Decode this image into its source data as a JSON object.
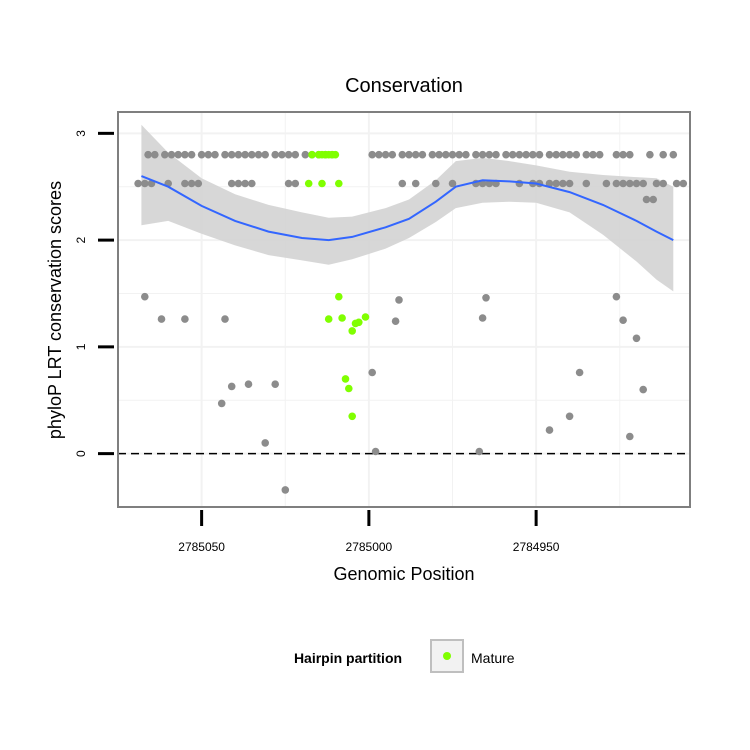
{
  "chart_data": {
    "type": "scatter",
    "title": "Conservation",
    "xlabel": "Genomic Position",
    "ylabel": "phyloP LRT conservation scores",
    "xlim": [
      2785075,
      2784904
    ],
    "x_reversed": true,
    "ylim": [
      -0.5,
      3.2
    ],
    "xticks": [
      2785050,
      2785000,
      2784950
    ],
    "yticks": [
      0,
      1,
      2,
      3
    ],
    "grid": true,
    "reference_line": {
      "y": 0,
      "style": "dashed",
      "color": "#000000"
    },
    "legend": {
      "title": "Hairpin partition",
      "position": "bottom",
      "entries": [
        {
          "label": "Mature",
          "color": "#80ff00"
        }
      ]
    },
    "colors": {
      "other": "#8c8c8c",
      "mature": "#80ff00",
      "smooth_line": "#3366ff",
      "ribbon": "#d3d3d3",
      "panel_border": "#7f7f7f",
      "grid": "#f2f2f2"
    },
    "series": [
      {
        "group": "other",
        "points": [
          [
            2785066,
            2.8
          ],
          [
            2785064,
            2.8
          ],
          [
            2785061,
            2.8
          ],
          [
            2785059,
            2.8
          ],
          [
            2785057,
            2.8
          ],
          [
            2785055,
            2.8
          ],
          [
            2785053,
            2.8
          ],
          [
            2785050,
            2.8
          ],
          [
            2785048,
            2.8
          ],
          [
            2785046,
            2.8
          ],
          [
            2785043,
            2.8
          ],
          [
            2785041,
            2.8
          ],
          [
            2785039,
            2.8
          ],
          [
            2785037,
            2.8
          ],
          [
            2785035,
            2.8
          ],
          [
            2785033,
            2.8
          ],
          [
            2785031,
            2.8
          ],
          [
            2785028,
            2.8
          ],
          [
            2785026,
            2.8
          ],
          [
            2785024,
            2.8
          ],
          [
            2785022,
            2.8
          ],
          [
            2785019,
            2.8
          ],
          [
            2785017,
            2.8
          ],
          [
            2785015,
            2.8
          ],
          [
            2785013,
            2.8
          ],
          [
            2785011,
            2.8
          ],
          [
            2784999,
            2.8
          ],
          [
            2784997,
            2.8
          ],
          [
            2784995,
            2.8
          ],
          [
            2784993,
            2.8
          ],
          [
            2784990,
            2.8
          ],
          [
            2784988,
            2.8
          ],
          [
            2784986,
            2.8
          ],
          [
            2784984,
            2.8
          ],
          [
            2784981,
            2.8
          ],
          [
            2784979,
            2.8
          ],
          [
            2784977,
            2.8
          ],
          [
            2784975,
            2.8
          ],
          [
            2784973,
            2.8
          ],
          [
            2784971,
            2.8
          ],
          [
            2784968,
            2.8
          ],
          [
            2784966,
            2.8
          ],
          [
            2784964,
            2.8
          ],
          [
            2784962,
            2.8
          ],
          [
            2784959,
            2.8
          ],
          [
            2784957,
            2.8
          ],
          [
            2784955,
            2.8
          ],
          [
            2784953,
            2.8
          ],
          [
            2784951,
            2.8
          ],
          [
            2784949,
            2.8
          ],
          [
            2784946,
            2.8
          ],
          [
            2784944,
            2.8
          ],
          [
            2784942,
            2.8
          ],
          [
            2784940,
            2.8
          ],
          [
            2784938,
            2.8
          ],
          [
            2784935,
            2.8
          ],
          [
            2784933,
            2.8
          ],
          [
            2784931,
            2.8
          ],
          [
            2784926,
            2.8
          ],
          [
            2784924,
            2.8
          ],
          [
            2784922,
            2.8
          ],
          [
            2784916,
            2.8
          ],
          [
            2784912,
            2.8
          ],
          [
            2784909,
            2.8
          ],
          [
            2785069,
            2.53
          ],
          [
            2785067,
            2.53
          ],
          [
            2785065,
            2.53
          ],
          [
            2785060,
            2.53
          ],
          [
            2785055,
            2.53
          ],
          [
            2785053,
            2.53
          ],
          [
            2785051,
            2.53
          ],
          [
            2785041,
            2.53
          ],
          [
            2785039,
            2.53
          ],
          [
            2785037,
            2.53
          ],
          [
            2785035,
            2.53
          ],
          [
            2785024,
            2.53
          ],
          [
            2785022,
            2.53
          ],
          [
            2784990,
            2.53
          ],
          [
            2784986,
            2.53
          ],
          [
            2784980,
            2.53
          ],
          [
            2784975,
            2.53
          ],
          [
            2784968,
            2.53
          ],
          [
            2784966,
            2.53
          ],
          [
            2784964,
            2.53
          ],
          [
            2784962,
            2.53
          ],
          [
            2784955,
            2.53
          ],
          [
            2784951,
            2.53
          ],
          [
            2784949,
            2.53
          ],
          [
            2784946,
            2.53
          ],
          [
            2784944,
            2.53
          ],
          [
            2784942,
            2.53
          ],
          [
            2784940,
            2.53
          ],
          [
            2784935,
            2.53
          ],
          [
            2784929,
            2.53
          ],
          [
            2784926,
            2.53
          ],
          [
            2784924,
            2.53
          ],
          [
            2784922,
            2.53
          ],
          [
            2784920,
            2.53
          ],
          [
            2784918,
            2.53
          ],
          [
            2784914,
            2.53
          ],
          [
            2784912,
            2.53
          ],
          [
            2784908,
            2.53
          ],
          [
            2784906,
            2.53
          ],
          [
            2784917,
            2.38
          ],
          [
            2784915,
            2.38
          ],
          [
            2785067,
            1.47
          ],
          [
            2785062,
            1.26
          ],
          [
            2785055,
            1.26
          ],
          [
            2785043,
            1.26
          ],
          [
            2784991,
            1.44
          ],
          [
            2784992,
            1.24
          ],
          [
            2784965,
            1.46
          ],
          [
            2784966,
            1.27
          ],
          [
            2784926,
            1.47
          ],
          [
            2784924,
            1.25
          ],
          [
            2784920,
            1.08
          ],
          [
            2784999,
            0.76
          ],
          [
            2785036,
            0.65
          ],
          [
            2785028,
            0.65
          ],
          [
            2785041,
            0.63
          ],
          [
            2785044,
            0.47
          ],
          [
            2784937,
            0.76
          ],
          [
            2784918,
            0.6
          ],
          [
            2784940,
            0.35
          ],
          [
            2784946,
            0.22
          ],
          [
            2784922,
            0.16
          ],
          [
            2785031,
            0.1
          ],
          [
            2784998,
            0.02
          ],
          [
            2784967,
            0.02
          ],
          [
            2785025,
            -0.34
          ]
        ]
      },
      {
        "group": "mature",
        "points": [
          [
            2785017,
            2.8
          ],
          [
            2785015,
            2.8
          ],
          [
            2785014,
            2.8
          ],
          [
            2785013,
            2.8
          ],
          [
            2785012,
            2.8
          ],
          [
            2785011,
            2.8
          ],
          [
            2785010,
            2.8
          ],
          [
            2785018,
            2.53
          ],
          [
            2785014,
            2.53
          ],
          [
            2785009,
            2.53
          ],
          [
            2785009,
            1.47
          ],
          [
            2785012,
            1.26
          ],
          [
            2785008,
            1.27
          ],
          [
            2785005,
            1.15
          ],
          [
            2785004,
            1.22
          ],
          [
            2785003,
            1.23
          ],
          [
            2785001,
            1.28
          ],
          [
            2785007,
            0.7
          ],
          [
            2785006,
            0.61
          ],
          [
            2785005,
            0.35
          ]
        ]
      }
    ],
    "smooth": {
      "method": "loess",
      "line": [
        [
          2785068,
          2.6
        ],
        [
          2785060,
          2.5
        ],
        [
          2785050,
          2.32
        ],
        [
          2785040,
          2.18
        ],
        [
          2785030,
          2.08
        ],
        [
          2785020,
          2.02
        ],
        [
          2785012,
          2.0
        ],
        [
          2785005,
          2.03
        ],
        [
          2784995,
          2.12
        ],
        [
          2784988,
          2.2
        ],
        [
          2784980,
          2.36
        ],
        [
          2784974,
          2.5
        ],
        [
          2784966,
          2.56
        ],
        [
          2784958,
          2.55
        ],
        [
          2784950,
          2.53
        ],
        [
          2784940,
          2.45
        ],
        [
          2784930,
          2.33
        ],
        [
          2784920,
          2.18
        ],
        [
          2784914,
          2.08
        ],
        [
          2784909,
          2.0
        ]
      ],
      "ribbon_upper": [
        [
          2785068,
          3.08
        ],
        [
          2785060,
          2.82
        ],
        [
          2785050,
          2.58
        ],
        [
          2785040,
          2.43
        ],
        [
          2785030,
          2.33
        ],
        [
          2785020,
          2.26
        ],
        [
          2785012,
          2.21
        ],
        [
          2785005,
          2.22
        ],
        [
          2784995,
          2.3
        ],
        [
          2784988,
          2.38
        ],
        [
          2784980,
          2.56
        ],
        [
          2784974,
          2.74
        ],
        [
          2784966,
          2.77
        ],
        [
          2784958,
          2.74
        ],
        [
          2784950,
          2.7
        ],
        [
          2784940,
          2.64
        ],
        [
          2784930,
          2.61
        ],
        [
          2784920,
          2.59
        ],
        [
          2784914,
          2.58
        ],
        [
          2784909,
          2.5
        ]
      ],
      "ribbon_lower": [
        [
          2785068,
          2.14
        ],
        [
          2785060,
          2.18
        ],
        [
          2785050,
          2.06
        ],
        [
          2785040,
          1.95
        ],
        [
          2785030,
          1.86
        ],
        [
          2785020,
          1.81
        ],
        [
          2785012,
          1.77
        ],
        [
          2785005,
          1.82
        ],
        [
          2784995,
          1.92
        ],
        [
          2784988,
          2.02
        ],
        [
          2784980,
          2.17
        ],
        [
          2784974,
          2.3
        ],
        [
          2784966,
          2.35
        ],
        [
          2784958,
          2.36
        ],
        [
          2784950,
          2.35
        ],
        [
          2784940,
          2.26
        ],
        [
          2784930,
          2.05
        ],
        [
          2784920,
          1.8
        ],
        [
          2784914,
          1.63
        ],
        [
          2784909,
          1.52
        ]
      ]
    }
  }
}
